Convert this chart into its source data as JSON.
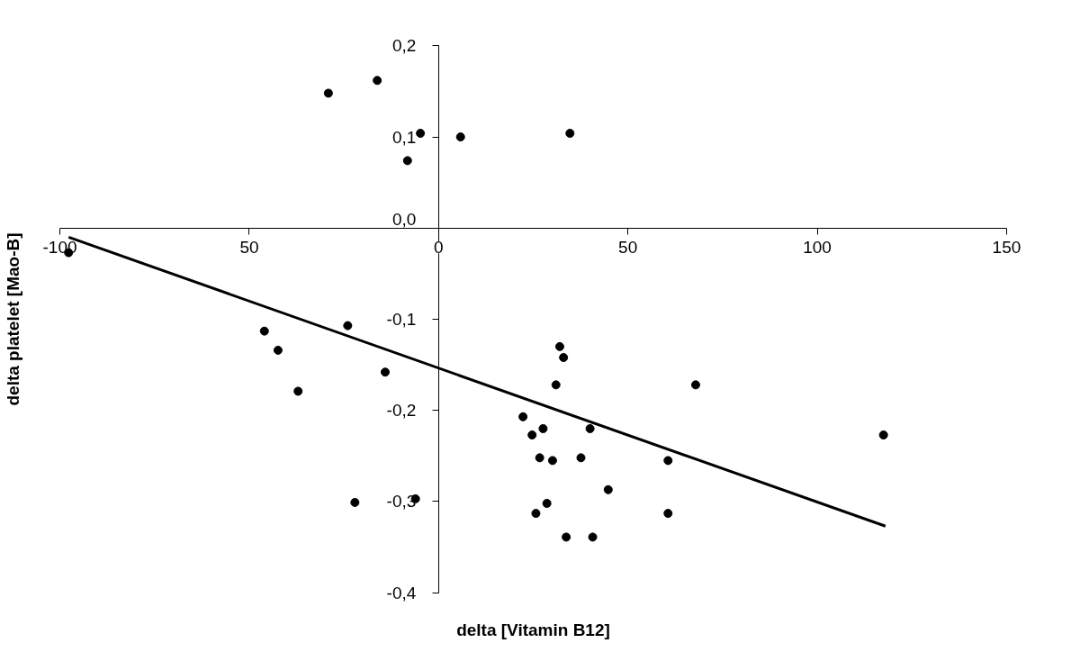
{
  "chart_data": {
    "type": "scatter",
    "xlabel": "delta [Vitamin B12]",
    "ylabel": "delta platelet [Mao-B]",
    "xlim": [
      -100,
      150
    ],
    "ylim": [
      -0.4,
      0.2
    ],
    "xticks": [
      -100,
      {
        "value": -50,
        "label": "50"
      },
      0,
      50,
      100,
      150
    ],
    "yticks": [
      {
        "value": -0.4,
        "label": "-0,4"
      },
      {
        "value": -0.3,
        "label": "-0,3"
      },
      {
        "value": -0.2,
        "label": "-0,2"
      },
      {
        "value": -0.1,
        "label": "-0,1"
      },
      {
        "value": 0.0,
        "label": "0,0"
      },
      {
        "value": 0.1,
        "label": "0,1"
      },
      {
        "value": 0.2,
        "label": "0,2"
      }
    ],
    "series": [
      {
        "color": "#000000",
        "marker": "circle",
        "x": [
          -8.2,
          -4.8,
          5.8,
          34.7,
          -29.1,
          -16.2,
          -97.7,
          -24.0,
          -46.0,
          -42.4,
          -37.1,
          -14.1,
          -22.1,
          -6.1,
          32.0,
          33.0,
          31.0,
          22.3,
          24.7,
          27.6,
          26.7,
          30.1,
          37.6,
          40.0,
          28.6,
          25.7,
          33.7,
          40.7,
          44.8,
          60.6,
          60.6,
          67.9,
          117.5
        ],
        "values": [
          0.074,
          0.104,
          0.1,
          0.104,
          0.148,
          0.162,
          -0.027,
          -0.107,
          -0.113,
          -0.134,
          -0.179,
          -0.158,
          -0.301,
          -0.297,
          -0.13,
          -0.142,
          -0.172,
          -0.207,
          -0.227,
          -0.22,
          -0.252,
          -0.255,
          -0.252,
          -0.22,
          -0.302,
          -0.313,
          -0.339,
          -0.339,
          -0.287,
          -0.255,
          -0.313,
          -0.172,
          -0.227
        ]
      },
      {
        "type": "line",
        "color": "#000000",
        "x": [
          -97.7,
          118
        ],
        "values": [
          -0.01,
          -0.327
        ]
      }
    ]
  }
}
